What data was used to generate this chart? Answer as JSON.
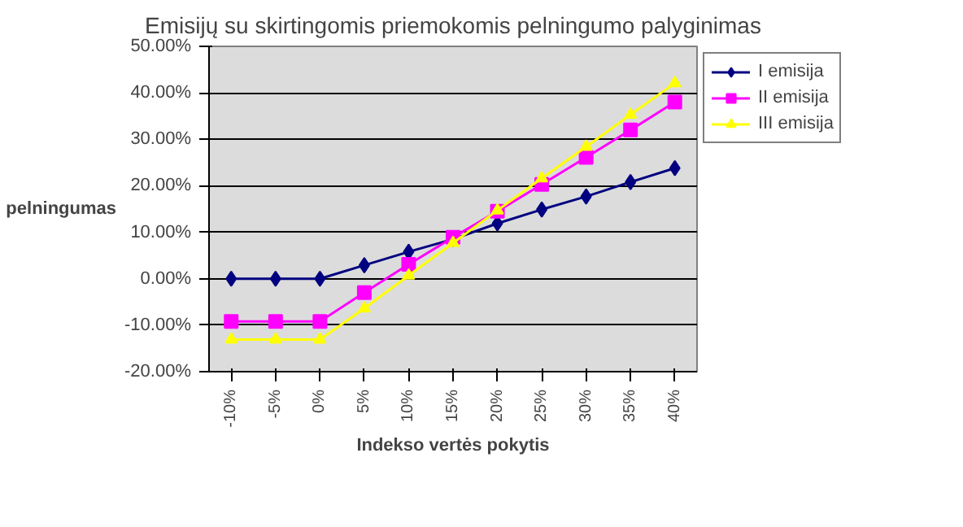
{
  "chart_data": {
    "type": "line",
    "title": "Emisijų su skirtingomis priemokomis pelningumo palyginimas",
    "xlabel": "Indekso vertės pokytis",
    "ylabel": "pelningumas",
    "categories": [
      "-10%",
      "-5%",
      "0%",
      "5%",
      "10%",
      "15%",
      "20%",
      "25%",
      "30%",
      "35%",
      "40%"
    ],
    "series": [
      {
        "name": "I emisija",
        "color": "#000080",
        "marker": "diamond",
        "values": [
          0,
          0,
          0,
          2.9,
          5.8,
          8.5,
          11.9,
          14.9,
          17.7,
          20.8,
          23.8
        ]
      },
      {
        "name": "II emisija",
        "color": "#ff00ff",
        "marker": "square",
        "values": [
          -9.2,
          -9.2,
          -9.2,
          -3.0,
          3.1,
          8.9,
          14.5,
          20.3,
          26.1,
          32.0,
          38.0
        ]
      },
      {
        "name": "III emisija",
        "color": "#ffff00",
        "marker": "triangle",
        "values": [
          -13.1,
          -13.1,
          -13.1,
          -6.4,
          0.7,
          7.7,
          14.7,
          21.6,
          28.4,
          35.3,
          42.1
        ]
      }
    ],
    "ylim": [
      -20,
      50
    ],
    "yticks": [
      {
        "value": -20,
        "label": "-20.00%"
      },
      {
        "value": -10,
        "label": "-10.00%"
      },
      {
        "value": 0,
        "label": "0.00%"
      },
      {
        "value": 10,
        "label": "10.00%"
      },
      {
        "value": 20,
        "label": "20.00%"
      },
      {
        "value": 30,
        "label": "30.00%"
      },
      {
        "value": 40,
        "label": "40.00%"
      },
      {
        "value": 50,
        "label": "50.00%"
      }
    ],
    "grid": "y",
    "legend": "right",
    "line_style": "solid"
  }
}
